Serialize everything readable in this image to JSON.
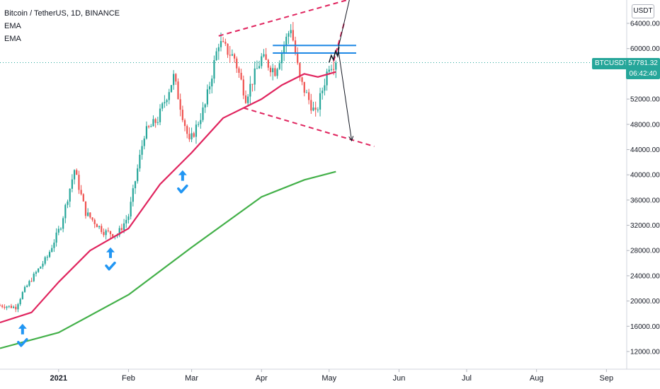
{
  "legend": {
    "title": "Bitcoin / TetherUS, 1D, BINANCE",
    "ema1": "EMA",
    "ema2": "EMA"
  },
  "price_axis": {
    "currency": "USDT",
    "symbol": "BTCUSDT",
    "last_price": "57781.32",
    "countdown": "06:42:40"
  },
  "colors": {
    "up": "#26a69a",
    "down": "#ef5350",
    "ema_fast": "#e0245e",
    "ema_slow": "#43b049",
    "trendline": "#e0245e",
    "resistance": "#1e88e5",
    "annotation": "#2196f3",
    "price_line": "#26a69a"
  },
  "chart_data": {
    "type": "line",
    "title": "Bitcoin / TetherUS, 1D, BINANCE",
    "y_ticks": [
      12000,
      16000,
      20000,
      24000,
      28000,
      32000,
      36000,
      40000,
      44000,
      48000,
      52000,
      56000,
      60000,
      64000
    ],
    "y_tick_labels": [
      "12000.00",
      "16000.00",
      "20000.00",
      "24000.00",
      "28000.00",
      "32000.00",
      "36000.00",
      "40000.00",
      "44000.00",
      "48000.00",
      "52000.00",
      "56000.00",
      "60000.00",
      "64000.00"
    ],
    "ylim": [
      9000,
      69000
    ],
    "x_ticks": [
      "2021",
      "Feb",
      "Mar",
      "Apr",
      "May",
      "Jun",
      "Jul",
      "Aug",
      "Sep"
    ],
    "x_tick_dates": [
      "2021-01-01",
      "2021-02-01",
      "2021-03-01",
      "2021-04-01",
      "2021-05-01",
      "2021-06-01",
      "2021-07-01",
      "2021-08-01",
      "2021-09-01"
    ],
    "xlim": [
      "2020-12-06",
      "2021-09-10"
    ],
    "last_price": 57781.32,
    "price_series": {
      "dates": [
        "2020-12-06",
        "2020-12-13",
        "2020-12-16",
        "2020-12-20",
        "2020-12-27",
        "2021-01-02",
        "2021-01-08",
        "2021-01-13",
        "2021-01-21",
        "2021-01-27",
        "2021-02-01",
        "2021-02-08",
        "2021-02-14",
        "2021-02-21",
        "2021-02-28",
        "2021-03-07",
        "2021-03-13",
        "2021-03-20",
        "2021-03-25",
        "2021-04-01",
        "2021-04-07",
        "2021-04-14",
        "2021-04-18",
        "2021-04-25",
        "2021-05-01",
        "2021-05-04"
      ],
      "values": [
        19300,
        19000,
        21300,
        23500,
        27000,
        32000,
        40800,
        34000,
        31000,
        30500,
        33500,
        46500,
        48800,
        55500,
        45000,
        51000,
        61000,
        58500,
        52300,
        58500,
        56500,
        63500,
        55000,
        49500,
        57500,
        57781
      ]
    },
    "series": [
      {
        "name": "EMA",
        "dates": [
          "2020-12-06",
          "2020-12-20",
          "2021-01-01",
          "2021-01-15",
          "2021-02-01",
          "2021-02-15",
          "2021-03-01",
          "2021-03-15",
          "2021-04-01",
          "2021-04-10",
          "2021-04-20",
          "2021-04-26",
          "2021-05-04"
        ],
        "values": [
          16600,
          18200,
          23000,
          28000,
          31500,
          38500,
          43500,
          49000,
          52000,
          54200,
          56000,
          55500,
          56300
        ]
      },
      {
        "name": "EMA",
        "dates": [
          "2020-12-06",
          "2021-01-01",
          "2021-02-01",
          "2021-03-01",
          "2021-04-01",
          "2021-04-20",
          "2021-05-04"
        ],
        "values": [
          12500,
          15000,
          21000,
          28500,
          36500,
          39200,
          40500
        ]
      }
    ],
    "annotations": {
      "resistance_levels": [
        60500,
        59300
      ],
      "upper_trendline": [
        [
          "2021-03-13",
          62000
        ],
        [
          "2021-05-24",
          69200
        ]
      ],
      "lower_trendline": [
        [
          "2021-03-24",
          50600
        ],
        [
          "2021-05-21",
          44500
        ]
      ],
      "projection_up": [
        "2021-05-05",
        60000,
        "2021-05-11",
        69300
      ],
      "projection_down": [
        "2021-05-05",
        60000,
        "2021-05-11",
        45400
      ],
      "bounce_markers": [
        "2020-12-16",
        "2021-01-24",
        "2021-02-25"
      ]
    }
  }
}
